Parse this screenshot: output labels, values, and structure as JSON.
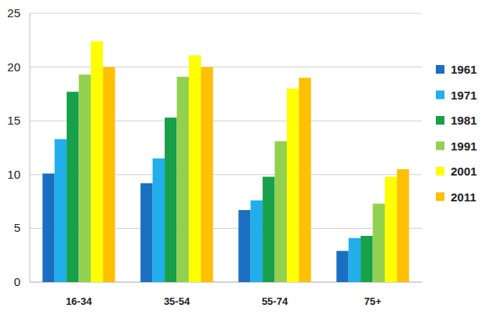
{
  "chart_data": {
    "type": "bar",
    "categories": [
      "16-34",
      "35-54",
      "55-74",
      "75+"
    ],
    "series": [
      {
        "name": "1961",
        "color": "#1a6fc2",
        "values": [
          10.1,
          9.2,
          6.7,
          2.9
        ]
      },
      {
        "name": "1971",
        "color": "#21aeea",
        "values": [
          13.3,
          11.5,
          7.6,
          4.1
        ]
      },
      {
        "name": "1981",
        "color": "#18a04a",
        "values": [
          17.7,
          15.3,
          9.8,
          4.3
        ]
      },
      {
        "name": "1991",
        "color": "#92d050",
        "values": [
          19.3,
          19.1,
          13.1,
          7.3
        ]
      },
      {
        "name": "2001",
        "color": "#ffff00",
        "values": [
          22.4,
          21.1,
          18.0,
          9.8
        ]
      },
      {
        "name": "2011",
        "color": "#ffc000",
        "values": [
          20.0,
          20.0,
          19.0,
          10.5
        ]
      }
    ],
    "ylim": [
      0,
      25
    ],
    "yticks": [
      0,
      5,
      10,
      15,
      20,
      25
    ],
    "grid": true,
    "legend": "right"
  }
}
